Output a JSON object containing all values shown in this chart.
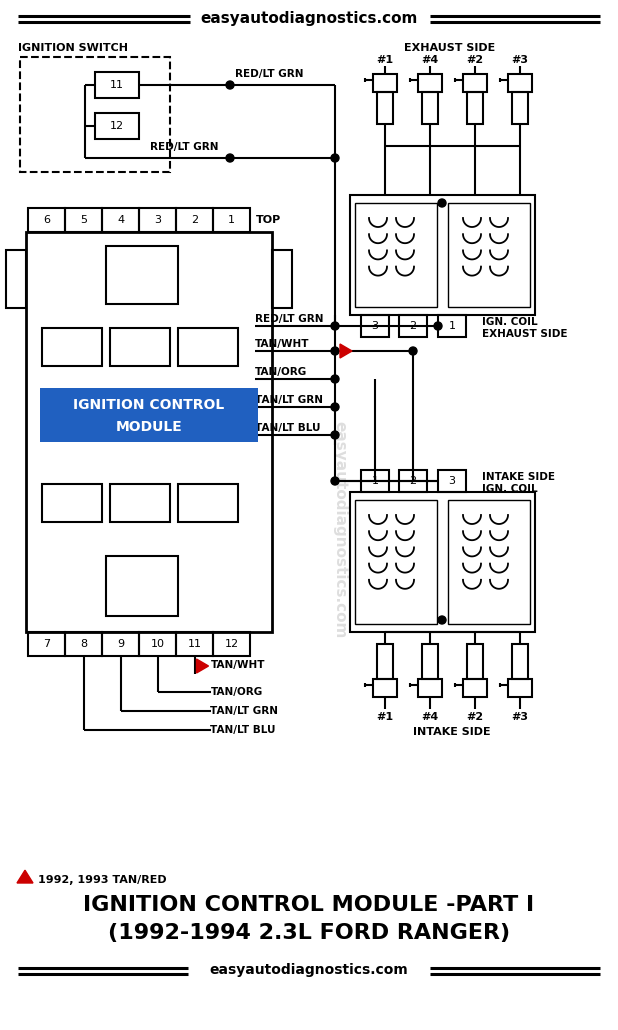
{
  "title_line1": "IGNITION CONTROL MODULE -PART I",
  "title_line2": "(1992-1994 2.3L FORD RANGER)",
  "website": "easyautodiagnostics.com",
  "bg_color": "#ffffff",
  "accent_color": "#2060c0",
  "red_color": "#cc0000",
  "note": "1992, 1993 TAN/RED",
  "exhaust_nums": [
    "#1",
    "#4",
    "#2",
    "#3"
  ],
  "intake_nums": [
    "#1",
    "#4",
    "#2",
    "#3"
  ],
  "top_pins": [
    "6",
    "5",
    "4",
    "3",
    "2",
    "1"
  ],
  "bot_pins": [
    "7",
    "8",
    "9",
    "10",
    "11",
    "12"
  ],
  "icm_label1": "IGNITION CONTROL",
  "icm_label2": "MODULE"
}
